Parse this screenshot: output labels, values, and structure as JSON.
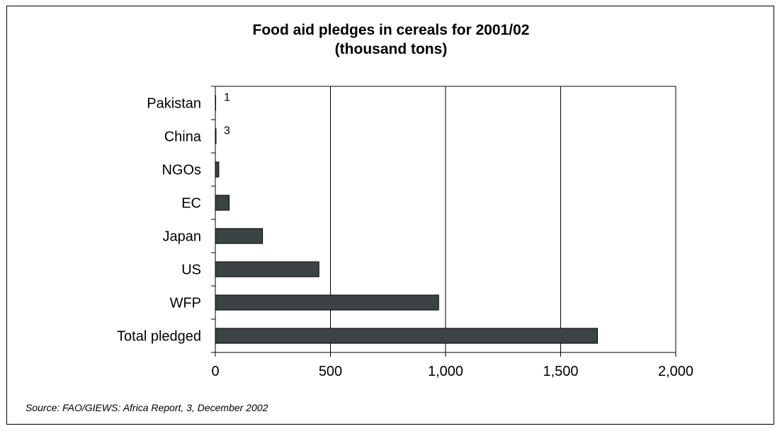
{
  "chart_data": {
    "type": "bar",
    "orientation": "horizontal",
    "title": "Food aid pledges in cereals for 2001/02",
    "subtitle": "(thousand tons)",
    "categories": [
      "Pakistan",
      "China",
      "NGOs",
      "EC",
      "Japan",
      "US",
      "WFP",
      "Total pledged"
    ],
    "values": [
      1,
      3,
      15,
      60,
      205,
      450,
      970,
      1660
    ],
    "data_labels": [
      {
        "category": "Pakistan",
        "label": "1"
      },
      {
        "category": "China",
        "label": "3"
      }
    ],
    "xlim": [
      0,
      2000
    ],
    "xticks": [
      0,
      500,
      1000,
      1500,
      2000
    ],
    "xtick_labels": [
      "0",
      "500",
      "1,000",
      "1,500",
      "2,000"
    ],
    "grid": "vertical",
    "legend": "none",
    "bar_color": "#3c4443",
    "source": "Source: FAO/GIEWS: Africa Report, 3, December 2002"
  }
}
